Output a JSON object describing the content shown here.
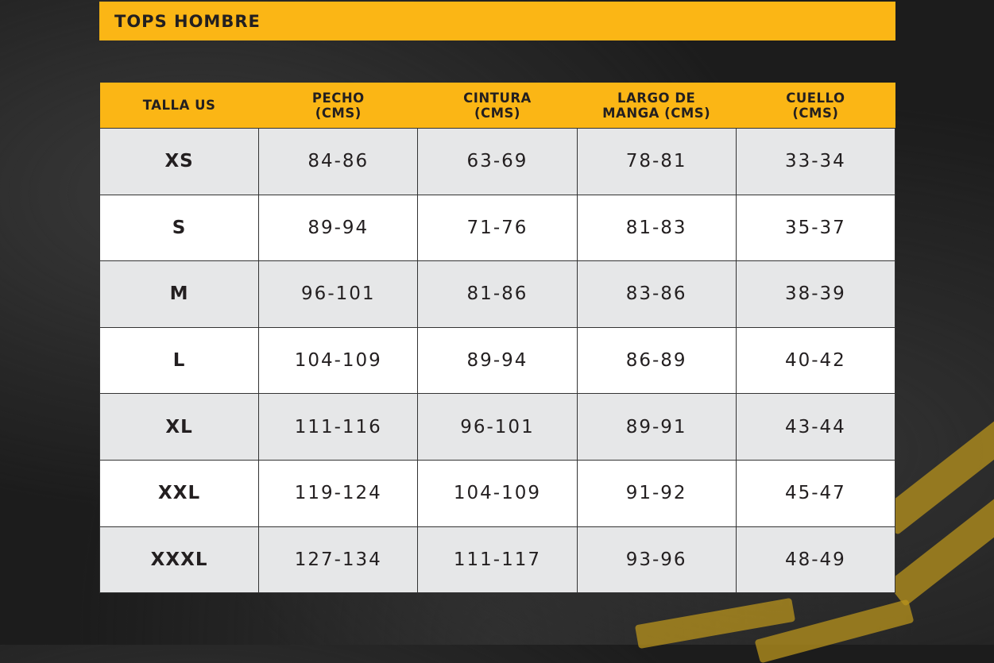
{
  "title": "TOPS HOMBRE",
  "colors": {
    "accent": "#fbb615",
    "row_alt": "#e6e7e8",
    "row": "#ffffff",
    "text": "#231f20"
  },
  "headers": [
    "TALLA US",
    "PECHO\n(CMS)",
    "CINTURA\n(CMS)",
    "LARGO DE\nMANGA (CMS)",
    "CUELLO\n(CMS)"
  ],
  "rows": [
    [
      "XS",
      "84-86",
      "63-69",
      "78-81",
      "33-34"
    ],
    [
      "S",
      "89-94",
      "71-76",
      "81-83",
      "35-37"
    ],
    [
      "M",
      "96-101",
      "81-86",
      "83-86",
      "38-39"
    ],
    [
      "L",
      "104-109",
      "89-94",
      "86-89",
      "40-42"
    ],
    [
      "XL",
      "111-116",
      "96-101",
      "89-91",
      "43-44"
    ],
    [
      "XXL",
      "119-124",
      "104-109",
      "91-92",
      "45-47"
    ],
    [
      "XXXL",
      "127-134",
      "111-117",
      "93-96",
      "48-49"
    ]
  ]
}
